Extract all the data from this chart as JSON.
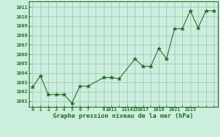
{
  "x": [
    0,
    1,
    2,
    3,
    4,
    5,
    6,
    7,
    9,
    10,
    11,
    13,
    14,
    15,
    16,
    17,
    18,
    19,
    20,
    21,
    22,
    23
  ],
  "y": [
    1002.5,
    1003.7,
    1001.7,
    1001.7,
    1001.7,
    1000.8,
    1002.6,
    1002.6,
    1003.5,
    1003.5,
    1003.4,
    1005.5,
    1004.7,
    1004.7,
    1006.6,
    1005.5,
    1008.7,
    1008.7,
    1010.6,
    1008.8,
    1010.6,
    1010.6
  ],
  "all_x": [
    0,
    1,
    2,
    3,
    4,
    5,
    6,
    7,
    8,
    9,
    10,
    11,
    12,
    13,
    14,
    15,
    16,
    17,
    18,
    19,
    20,
    21,
    22,
    23
  ],
  "xtick_labels_all": [
    "0",
    "1",
    "2",
    "3",
    "4",
    "5",
    "6",
    "7",
    "",
    "9",
    "1011",
    "",
    "1314",
    "15",
    "1617",
    "",
    "1819",
    "",
    "2021",
    "",
    "2223",
    "",
    "",
    ""
  ],
  "yticks": [
    1001,
    1002,
    1003,
    1004,
    1005,
    1006,
    1007,
    1008,
    1009,
    1010,
    1011
  ],
  "ylim": [
    1000.4,
    1011.6
  ],
  "xlim": [
    -0.5,
    23.5
  ],
  "line_color": "#1f6b1f",
  "marker": "*",
  "marker_size": 4,
  "marker_color": "#1f6b1f",
  "bg_color": "#cceedd",
  "grid_color": "#99bbbb",
  "xlabel": "Graphe pression niveau de la mer (hPa)",
  "xlabel_color": "#1f6b1f",
  "tick_color": "#1f6b1f",
  "border_color": "#1f6b1f",
  "tick_fontsize": 5.0,
  "xlabel_fontsize": 6.5
}
